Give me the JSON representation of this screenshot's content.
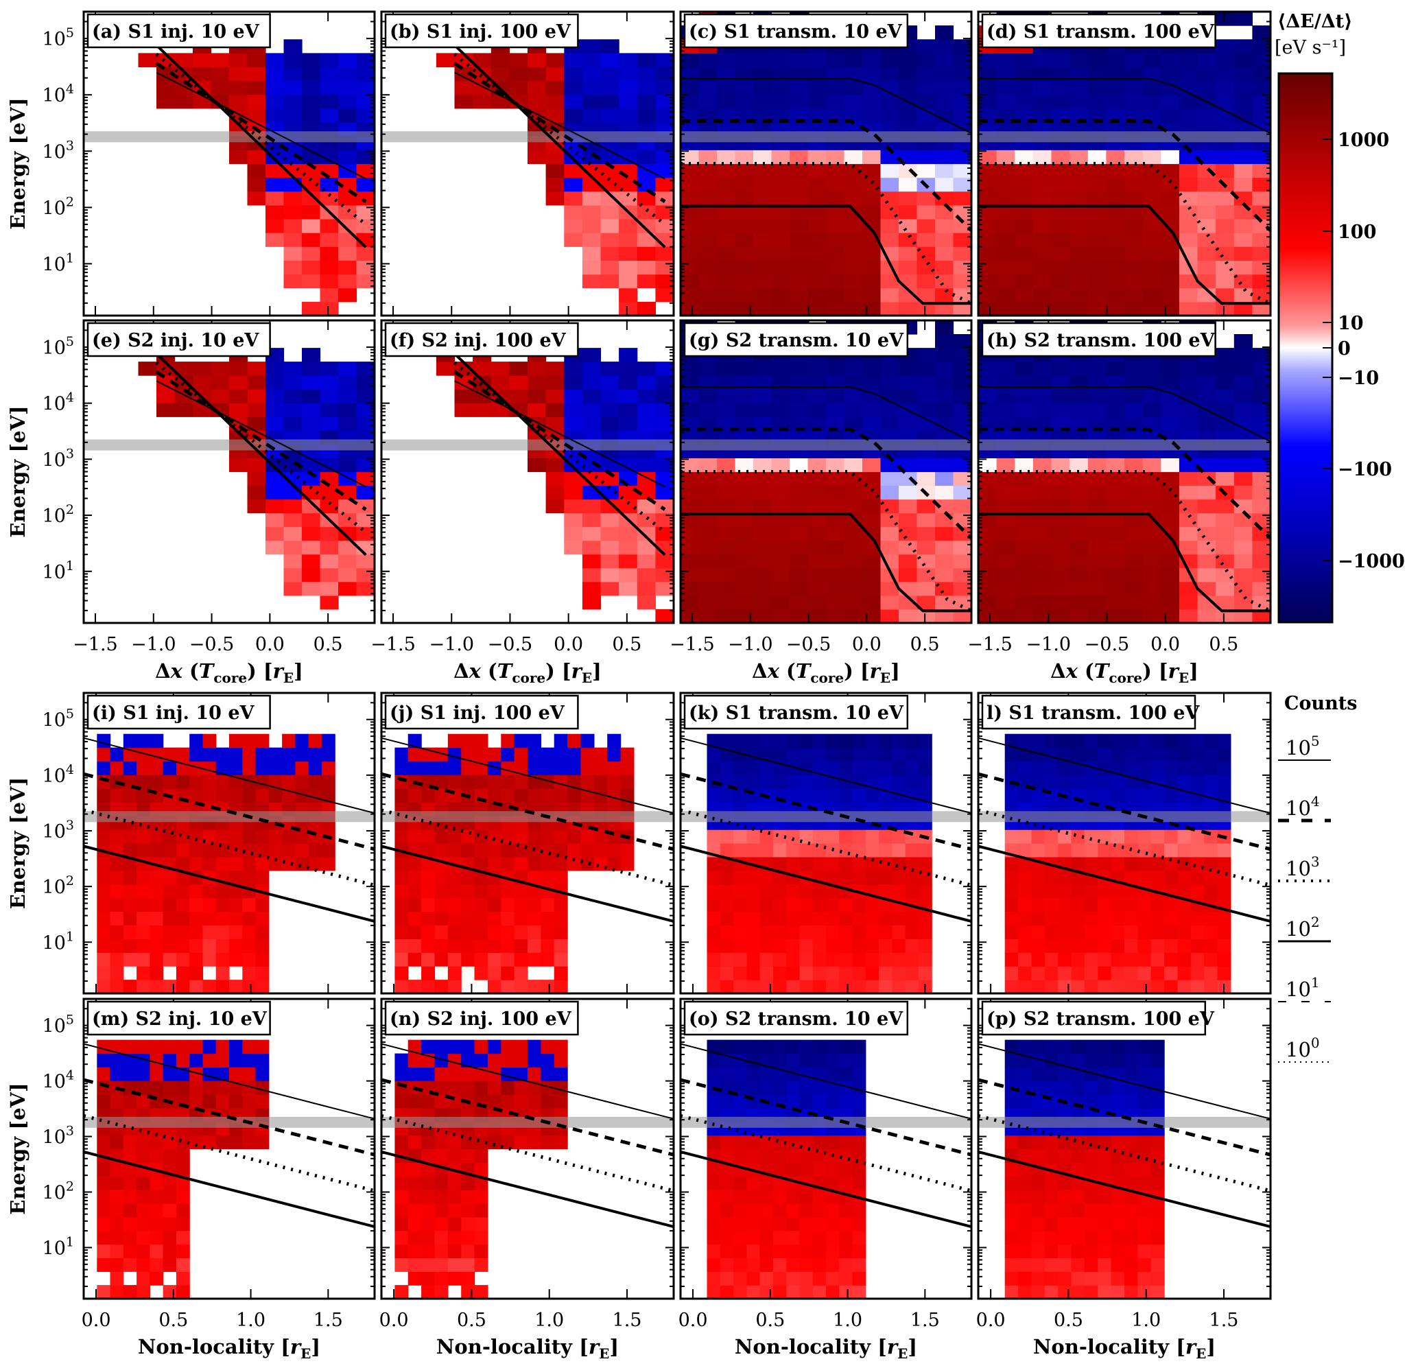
{
  "chart_data": {
    "type": "heatmap",
    "figure_layout": "4x4 panel grid with shared colorbar and contour legend",
    "colorbar": {
      "title": "⟨ΔE/Δt⟩",
      "units": "[eV s⁻¹]",
      "scale": "symlog",
      "range": [
        -4000,
        4000
      ],
      "tick_labels": [
        "1000",
        "100",
        "10",
        "0",
        "−10",
        "−100",
        "−1000"
      ],
      "tick_values": [
        1000,
        100,
        10,
        0,
        -10,
        -100,
        -1000
      ],
      "colors": {
        "neg_max": "#000066",
        "neg_mid": "#0000ff",
        "zero": "#ffffff",
        "pos_mid": "#ff0000",
        "pos_max": "#660000"
      }
    },
    "contour_legend": {
      "title": "Counts",
      "levels": [
        {
          "label": "10⁵",
          "base": "10",
          "exp": "5",
          "style": "solid-thin"
        },
        {
          "label": "10⁴",
          "base": "10",
          "exp": "4",
          "style": "dashed-thick"
        },
        {
          "label": "10³",
          "base": "10",
          "exp": "3",
          "style": "dotted-thick"
        },
        {
          "label": "10²",
          "base": "10",
          "exp": "2",
          "style": "solid"
        },
        {
          "label": "10¹",
          "base": "10",
          "exp": "1",
          "style": "dashed-thin"
        },
        {
          "label": "10⁰",
          "base": "10",
          "exp": "0",
          "style": "dotted-thin"
        }
      ]
    },
    "y_axis": {
      "label": "Energy [eV]",
      "scale": "log",
      "range": [
        1.2,
        300000
      ],
      "tick_values": [
        10,
        100,
        1000,
        10000,
        100000
      ],
      "tick_labels": [
        {
          "base": "10",
          "exp": "1"
        },
        {
          "base": "10",
          "exp": "2"
        },
        {
          "base": "10",
          "exp": "3"
        },
        {
          "base": "10",
          "exp": "4"
        },
        {
          "base": "10",
          "exp": "5"
        }
      ],
      "reference_band_eV": 1800
    },
    "x_axes": {
      "top": {
        "label_parts": {
          "pre": "Δ",
          "var": "x",
          "mid": " (",
          "T": "T",
          "sub": "core",
          "post": ") [",
          "r": "r",
          "rsub": "E",
          "end": "]"
        },
        "range": [
          -1.6,
          0.9
        ],
        "tick_values": [
          -1.5,
          -1.0,
          -0.5,
          0.0,
          0.5
        ],
        "tick_labels": [
          "−1.5",
          "−1.0",
          "−0.5",
          "0.0",
          "0.5"
        ]
      },
      "bottom": {
        "label_parts": {
          "pre": "Non-locality [",
          "r": "r",
          "rsub": "E",
          "end": "]"
        },
        "range": [
          -0.08,
          1.8
        ],
        "tick_values": [
          0.0,
          0.5,
          1.0,
          1.5
        ],
        "tick_labels": [
          "0.0",
          "0.5",
          "1.0",
          "1.5"
        ]
      }
    },
    "panels": [
      {
        "id": "a",
        "title": "(a) S1 inj. 10 eV",
        "xaxis": "top",
        "kind": "inj",
        "variant": 1
      },
      {
        "id": "b",
        "title": "(b) S1 inj. 100 eV",
        "xaxis": "top",
        "kind": "inj",
        "variant": 2
      },
      {
        "id": "c",
        "title": "(c) S1  transm. 10 eV",
        "xaxis": "top",
        "kind": "transm",
        "variant": 1
      },
      {
        "id": "d",
        "title": "(d) S1  transm. 100 eV",
        "xaxis": "top",
        "kind": "transm",
        "variant": 2
      },
      {
        "id": "e",
        "title": "(e) S2 inj. 10 eV",
        "xaxis": "top",
        "kind": "inj",
        "variant": 3
      },
      {
        "id": "f",
        "title": "(f) S2 inj. 100 eV",
        "xaxis": "top",
        "kind": "inj",
        "variant": 4
      },
      {
        "id": "g",
        "title": "(g) S2  transm. 10 eV",
        "xaxis": "top",
        "kind": "transm",
        "variant": 3
      },
      {
        "id": "h",
        "title": "(h) S2  transm. 100 eV",
        "xaxis": "top",
        "kind": "transm",
        "variant": 4
      },
      {
        "id": "i",
        "title": "(i) S1 inj. 10 eV",
        "xaxis": "bottom",
        "kind": "ninj",
        "variant": 1
      },
      {
        "id": "j",
        "title": "(j) S1 inj. 100 eV",
        "xaxis": "bottom",
        "kind": "ninj",
        "variant": 2
      },
      {
        "id": "k",
        "title": "(k) S1 transm.  10 eV",
        "xaxis": "bottom",
        "kind": "ntransm",
        "variant": 1
      },
      {
        "id": "l",
        "title": "l) S1 transm. 100 eV",
        "xaxis": "bottom",
        "kind": "ntransm",
        "variant": 2
      },
      {
        "id": "m",
        "title": "(m) S2 inj. 10 eV",
        "xaxis": "bottom",
        "kind": "ninj2",
        "variant": 3
      },
      {
        "id": "n",
        "title": "(n) S2 inj. 100 eV",
        "xaxis": "bottom",
        "kind": "ninj2",
        "variant": 4
      },
      {
        "id": "o",
        "title": "(o) S2 transm.  10 eV",
        "xaxis": "bottom",
        "kind": "ntransm2",
        "variant": 3
      },
      {
        "id": "p",
        "title": "(p) S2 transm. 100 eV",
        "xaxis": "bottom",
        "kind": "ntransm2",
        "variant": 4
      }
    ]
  }
}
